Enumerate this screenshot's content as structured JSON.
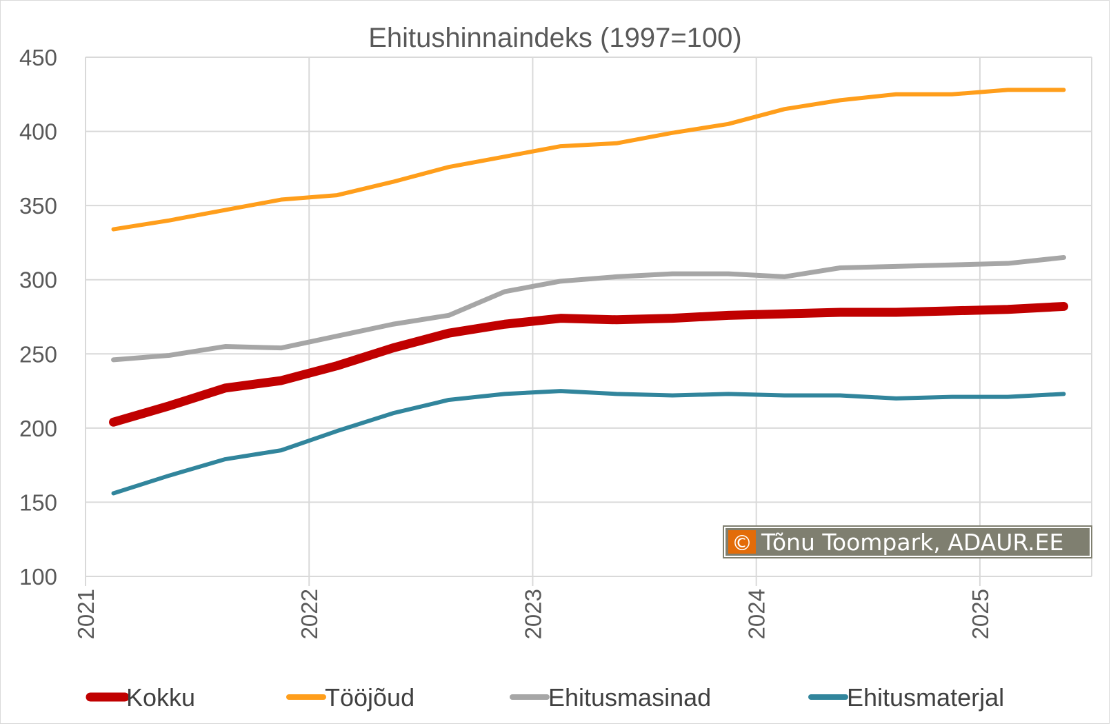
{
  "chart_data": {
    "type": "line",
    "title": "Ehitushinnaindeks (1997=100)",
    "xlabel": "",
    "ylabel": "",
    "ylim": [
      100,
      450
    ],
    "y_ticks": [
      100,
      150,
      200,
      250,
      300,
      350,
      400,
      450
    ],
    "x_range": [
      2021.0,
      2025.5
    ],
    "x_ticks": [
      "2021",
      "2022",
      "2023",
      "2024",
      "2025"
    ],
    "x": [
      2021.125,
      2021.375,
      2021.625,
      2021.875,
      2022.125,
      2022.375,
      2022.625,
      2022.875,
      2023.125,
      2023.375,
      2023.625,
      2023.875,
      2024.125,
      2024.375,
      2024.625,
      2024.875,
      2025.125,
      2025.375
    ],
    "grid": "vertical and horizontal",
    "legend_position": "bottom",
    "series": [
      {
        "name": "Kokku",
        "color": "#c00000",
        "width": 13,
        "values": [
          204,
          215,
          227,
          232,
          242,
          254,
          264,
          270,
          274,
          273,
          274,
          276,
          277,
          278,
          278,
          279,
          280,
          282
        ]
      },
      {
        "name": "Tööjõud",
        "color": "#ff9e1b",
        "width": 6,
        "values": [
          334,
          340,
          347,
          354,
          357,
          366,
          376,
          383,
          390,
          392,
          399,
          405,
          415,
          421,
          425,
          425,
          428,
          428
        ]
      },
      {
        "name": "Ehitusmasinad",
        "color": "#a6a6a6",
        "width": 7,
        "values": [
          246,
          249,
          255,
          254,
          262,
          270,
          276,
          292,
          299,
          302,
          304,
          304,
          302,
          308,
          309,
          310,
          311,
          315
        ]
      },
      {
        "name": "Ehitusmaterjal",
        "color": "#31859c",
        "width": 6,
        "values": [
          156,
          168,
          179,
          185,
          198,
          210,
          219,
          223,
          225,
          223,
          222,
          223,
          222,
          222,
          220,
          221,
          221,
          223
        ]
      }
    ]
  },
  "credit": {
    "symbol": "©",
    "text": "Tõnu Toompark, ADAUR.EE",
    "symbol_bg": "#e36c09",
    "bg": "#7f7f70"
  }
}
